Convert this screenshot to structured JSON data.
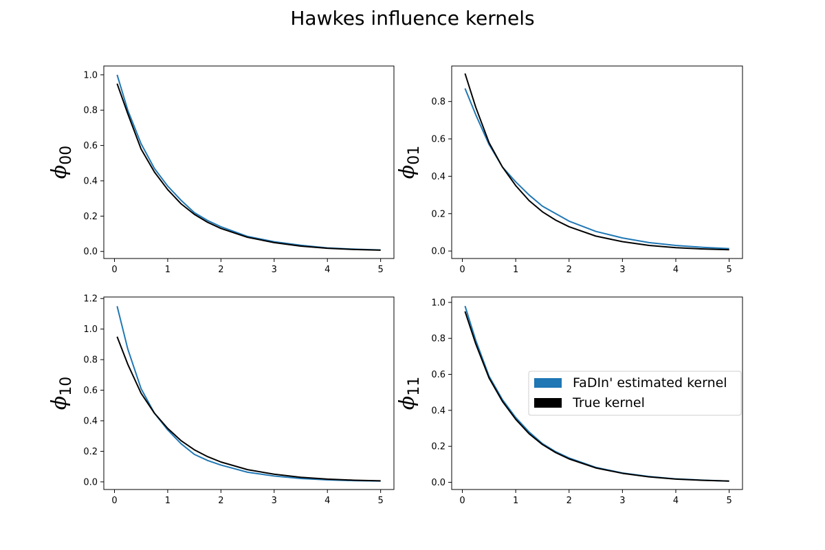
{
  "figure": {
    "title": "Hawkes influence kernels"
  },
  "chart_data": [
    {
      "type": "line",
      "ylabel_symbol": "ϕ",
      "ylabel_subscript": "00",
      "xlim": [
        -0.2,
        5.25
      ],
      "ylim": [
        -0.04,
        1.05
      ],
      "xticks": [
        0,
        1,
        2,
        3,
        4,
        5
      ],
      "yticks": [
        0.0,
        0.2,
        0.4,
        0.6,
        0.8,
        1.0
      ],
      "series": [
        {
          "name": "FaDIn' estimated kernel",
          "color": "#1f77b4",
          "x": [
            0.05,
            0.25,
            0.5,
            0.75,
            1.0,
            1.25,
            1.5,
            1.75,
            2.0,
            2.5,
            3.0,
            3.5,
            4.0,
            4.5,
            5.0
          ],
          "y": [
            1.0,
            0.8,
            0.61,
            0.47,
            0.37,
            0.29,
            0.22,
            0.175,
            0.14,
            0.085,
            0.055,
            0.035,
            0.02,
            0.013,
            0.008
          ]
        },
        {
          "name": "True kernel",
          "color": "#000000",
          "x": [
            0.05,
            0.25,
            0.5,
            0.75,
            1.0,
            1.25,
            1.5,
            1.75,
            2.0,
            2.5,
            3.0,
            3.5,
            4.0,
            4.5,
            5.0
          ],
          "y": [
            0.95,
            0.78,
            0.58,
            0.45,
            0.35,
            0.27,
            0.21,
            0.165,
            0.13,
            0.08,
            0.05,
            0.03,
            0.018,
            0.011,
            0.007
          ]
        }
      ]
    },
    {
      "type": "line",
      "ylabel_symbol": "ϕ",
      "ylabel_subscript": "01",
      "xlim": [
        -0.2,
        5.25
      ],
      "ylim": [
        -0.04,
        0.99
      ],
      "xticks": [
        0,
        1,
        2,
        3,
        4,
        5
      ],
      "yticks": [
        0.0,
        0.2,
        0.4,
        0.6,
        0.8
      ],
      "series": [
        {
          "name": "FaDIn' estimated kernel",
          "color": "#1f77b4",
          "x": [
            0.05,
            0.25,
            0.5,
            0.75,
            1.0,
            1.25,
            1.5,
            1.75,
            2.0,
            2.5,
            3.0,
            3.5,
            4.0,
            4.5,
            5.0
          ],
          "y": [
            0.87,
            0.73,
            0.57,
            0.45,
            0.37,
            0.3,
            0.24,
            0.2,
            0.16,
            0.105,
            0.07,
            0.045,
            0.03,
            0.02,
            0.013
          ]
        },
        {
          "name": "True kernel",
          "color": "#000000",
          "x": [
            0.05,
            0.25,
            0.5,
            0.75,
            1.0,
            1.25,
            1.5,
            1.75,
            2.0,
            2.5,
            3.0,
            3.5,
            4.0,
            4.5,
            5.0
          ],
          "y": [
            0.95,
            0.77,
            0.58,
            0.45,
            0.35,
            0.27,
            0.21,
            0.165,
            0.13,
            0.08,
            0.05,
            0.03,
            0.018,
            0.011,
            0.007
          ]
        }
      ]
    },
    {
      "type": "line",
      "ylabel_symbol": "ϕ",
      "ylabel_subscript": "10",
      "xlim": [
        -0.2,
        5.25
      ],
      "ylim": [
        -0.05,
        1.21
      ],
      "xticks": [
        0,
        1,
        2,
        3,
        4,
        5
      ],
      "yticks": [
        0.0,
        0.2,
        0.4,
        0.6,
        0.8,
        1.0,
        1.2
      ],
      "series": [
        {
          "name": "FaDIn' estimated kernel",
          "color": "#1f77b4",
          "x": [
            0.05,
            0.25,
            0.5,
            0.75,
            1.0,
            1.25,
            1.5,
            1.75,
            2.0,
            2.5,
            3.0,
            3.5,
            4.0,
            4.5,
            5.0
          ],
          "y": [
            1.15,
            0.87,
            0.61,
            0.45,
            0.34,
            0.25,
            0.18,
            0.14,
            0.11,
            0.063,
            0.038,
            0.022,
            0.013,
            0.008,
            0.005
          ]
        },
        {
          "name": "True kernel",
          "color": "#000000",
          "x": [
            0.05,
            0.25,
            0.5,
            0.75,
            1.0,
            1.25,
            1.5,
            1.75,
            2.0,
            2.5,
            3.0,
            3.5,
            4.0,
            4.5,
            5.0
          ],
          "y": [
            0.95,
            0.77,
            0.58,
            0.45,
            0.35,
            0.27,
            0.21,
            0.165,
            0.13,
            0.08,
            0.05,
            0.03,
            0.018,
            0.011,
            0.007
          ]
        }
      ]
    },
    {
      "type": "line",
      "ylabel_symbol": "ϕ",
      "ylabel_subscript": "11",
      "xlim": [
        -0.2,
        5.25
      ],
      "ylim": [
        -0.04,
        1.03
      ],
      "xticks": [
        0,
        1,
        2,
        3,
        4,
        5
      ],
      "yticks": [
        0.0,
        0.2,
        0.4,
        0.6,
        0.8,
        1.0
      ],
      "legend": {
        "placement": "center-right",
        "entries": [
          "FaDIn' estimated kernel",
          "True kernel"
        ]
      },
      "series": [
        {
          "name": "FaDIn' estimated kernel",
          "color": "#1f77b4",
          "x": [
            0.05,
            0.25,
            0.5,
            0.75,
            1.0,
            1.25,
            1.5,
            1.75,
            2.0,
            2.5,
            3.0,
            3.5,
            4.0,
            4.5,
            5.0
          ],
          "y": [
            0.98,
            0.79,
            0.59,
            0.46,
            0.36,
            0.28,
            0.215,
            0.17,
            0.135,
            0.083,
            0.052,
            0.032,
            0.019,
            0.012,
            0.007
          ]
        },
        {
          "name": "True kernel",
          "color": "#000000",
          "x": [
            0.05,
            0.25,
            0.5,
            0.75,
            1.0,
            1.25,
            1.5,
            1.75,
            2.0,
            2.5,
            3.0,
            3.5,
            4.0,
            4.5,
            5.0
          ],
          "y": [
            0.95,
            0.77,
            0.58,
            0.45,
            0.35,
            0.27,
            0.21,
            0.165,
            0.13,
            0.08,
            0.05,
            0.03,
            0.018,
            0.011,
            0.007
          ]
        }
      ]
    }
  ]
}
